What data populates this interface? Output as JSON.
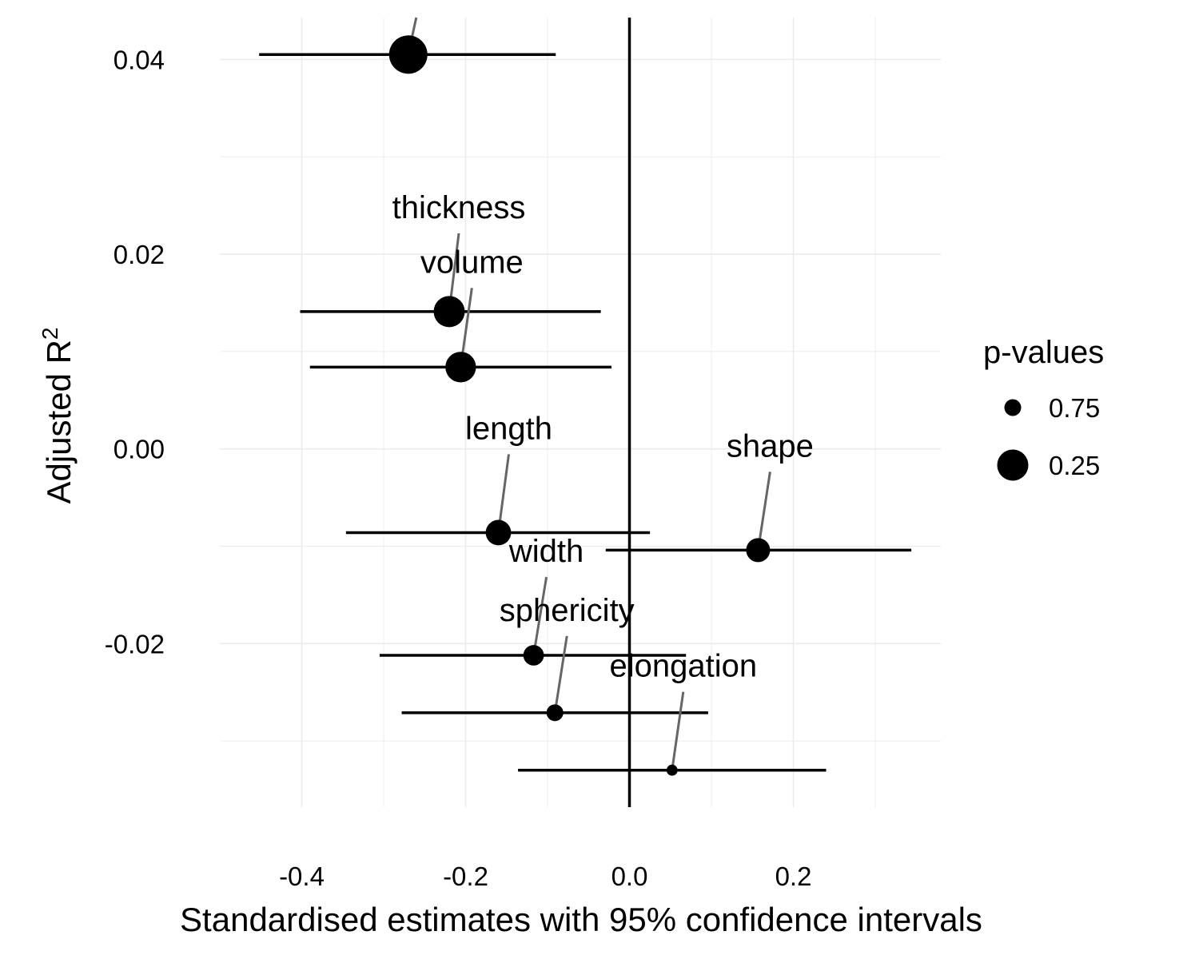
{
  "chart_data": {
    "type": "scatter",
    "title": "",
    "xlabel": "Standardised estimates with 95% confidence intervals",
    "ylabel": "Adjusted R",
    "ylabel_superscript": "2",
    "xlim": [
      -0.5,
      0.38
    ],
    "ylim": [
      -0.0368,
      0.0443
    ],
    "xticks": [
      {
        "value": -0.4,
        "label": "-0.4"
      },
      {
        "value": -0.2,
        "label": "-0.2"
      },
      {
        "value": 0.0,
        "label": "0.0"
      },
      {
        "value": 0.2,
        "label": "0.2"
      }
    ],
    "yticks": [
      {
        "value": 0.04,
        "label": "0.04"
      },
      {
        "value": 0.02,
        "label": "0.02"
      },
      {
        "value": 0.0,
        "label": "0.00"
      },
      {
        "value": -0.02,
        "label": "-0.02"
      }
    ],
    "grid": true,
    "vertical_reference_line": 0.0,
    "points": [
      {
        "label": "",
        "x": -0.27,
        "y": 0.0405,
        "lo": -0.452,
        "hi": -0.09,
        "p": 0.0
      },
      {
        "label": "thickness",
        "x": -0.22,
        "y": 0.0141,
        "lo": -0.402,
        "hi": -0.035,
        "p": 0.25
      },
      {
        "label": "volume",
        "x": -0.206,
        "y": 0.0084,
        "lo": -0.39,
        "hi": -0.022,
        "p": 0.27
      },
      {
        "label": "length",
        "x": -0.16,
        "y": -0.0086,
        "lo": -0.346,
        "hi": 0.025,
        "p": 0.45
      },
      {
        "label": "shape",
        "x": 0.157,
        "y": -0.0104,
        "lo": -0.029,
        "hi": 0.344,
        "p": 0.5
      },
      {
        "label": "width",
        "x": -0.117,
        "y": -0.0212,
        "lo": -0.305,
        "hi": 0.069,
        "p": 0.62
      },
      {
        "label": "sphericity",
        "x": -0.091,
        "y": -0.0271,
        "lo": -0.278,
        "hi": 0.096,
        "p": 0.75
      },
      {
        "label": "elongation",
        "x": 0.052,
        "y": -0.033,
        "lo": -0.136,
        "hi": 0.24,
        "p": 0.95
      }
    ],
    "legend": {
      "title": "p-values",
      "placement": "right",
      "entries": [
        {
          "label": "0.75",
          "p": 0.75
        },
        {
          "label": "0.25",
          "p": 0.25
        }
      ]
    },
    "colors": {
      "points": "#000000",
      "intervals": "#000000",
      "leader_lines": "#666666",
      "grid": "#ebebeb",
      "zero_line": "#000000"
    }
  }
}
